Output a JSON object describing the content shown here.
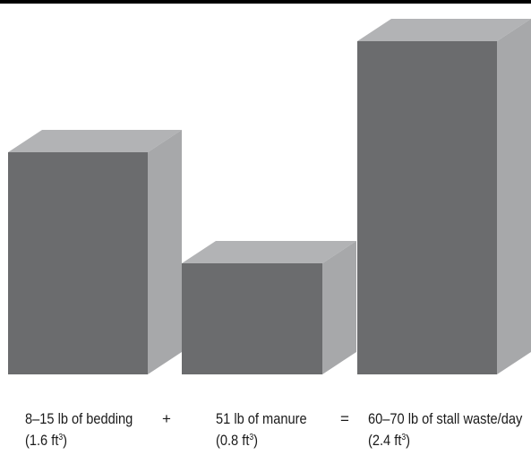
{
  "chart_data": {
    "type": "bar",
    "style": "3d-boxes",
    "categories": [
      "8–15 lb of bedding",
      "51 lb of manure",
      "60–70 lb of stall waste/day"
    ],
    "volumes": [
      "(1.6 ft",
      "(0.8 ft",
      "(2.4 ft"
    ],
    "volume_unit_exponent": "3",
    "volume_close": ")",
    "values": [
      1.6,
      0.8,
      2.4
    ],
    "unit": "ft³",
    "operators": [
      "+",
      "="
    ],
    "colors": {
      "front": "#6b6c6e",
      "top": "#b2b3b5",
      "side": "#a7a8aa"
    }
  }
}
